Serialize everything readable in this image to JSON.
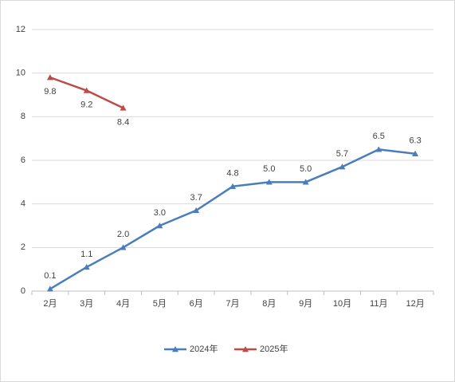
{
  "chart_data": {
    "type": "line",
    "categories": [
      "2月",
      "3月",
      "4月",
      "5月",
      "6月",
      "7月",
      "8月",
      "9月",
      "10月",
      "11月",
      "12月"
    ],
    "series": [
      {
        "name": "2024年",
        "color": "#4a7ebb",
        "label_position": "above",
        "values": [
          0.1,
          1.1,
          2.0,
          3.0,
          3.7,
          4.8,
          5.0,
          5.0,
          5.7,
          6.5,
          6.3
        ],
        "value_labels": [
          "0.1",
          "1.1",
          "2.0",
          "3.0",
          "3.7",
          "4.8",
          "5.0",
          "5.0",
          "5.7",
          "6.5",
          "6.3"
        ]
      },
      {
        "name": "2025年",
        "color": "#be4b48",
        "label_position": "below",
        "values": [
          9.8,
          9.2,
          8.4,
          null,
          null,
          null,
          null,
          null,
          null,
          null,
          null
        ],
        "value_labels": [
          "9.8",
          "9.2",
          "8.4",
          null,
          null,
          null,
          null,
          null,
          null,
          null,
          null
        ]
      }
    ],
    "ylim": [
      0,
      12
    ],
    "yticks": [
      0,
      2,
      4,
      6,
      8,
      10,
      12
    ],
    "grid": true,
    "legend": "bottom"
  }
}
